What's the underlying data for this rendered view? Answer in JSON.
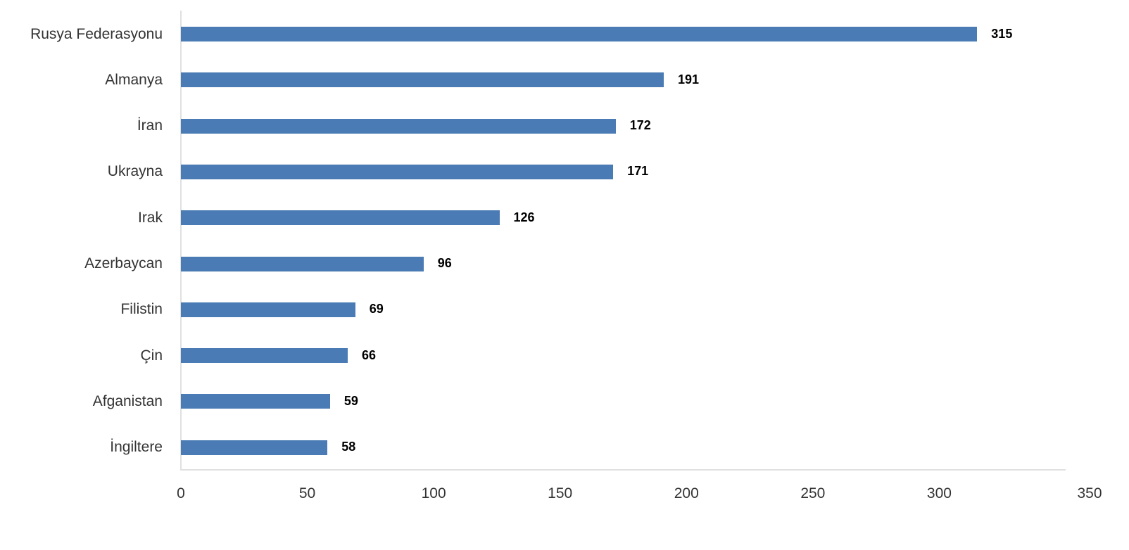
{
  "chart_data": {
    "type": "bar",
    "orientation": "horizontal",
    "title": "",
    "xlabel": "",
    "ylabel": "",
    "categories": [
      "Rusya Federasyonu",
      "Almanya",
      "İran",
      "Ukrayna",
      "Irak",
      "Azerbaycan",
      "Filistin",
      "Çin",
      "Afganistan",
      "İngiltere"
    ],
    "values": [
      315,
      191,
      172,
      171,
      126,
      96,
      69,
      66,
      59,
      58
    ],
    "xlim": [
      0,
      350
    ],
    "x_ticks": [
      0,
      50,
      100,
      150,
      200,
      250,
      300,
      350
    ],
    "grid": false,
    "legend": null,
    "data_labels": true,
    "bar_color": "#4a7bb4"
  }
}
